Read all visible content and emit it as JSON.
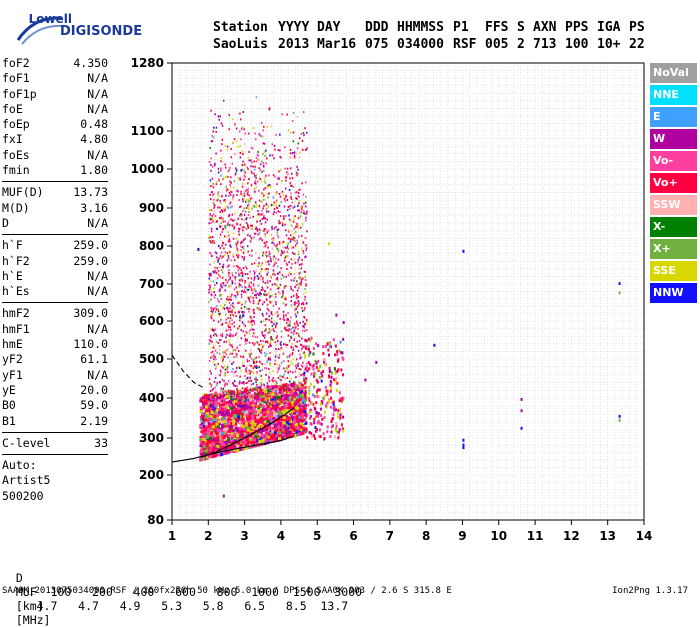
{
  "logo": {
    "top": "Lowell",
    "main": "DIGISONDE"
  },
  "header": {
    "labels": [
      "Station",
      "YYYY",
      "DAY",
      "DDD",
      "HHMMSS",
      "P1",
      "FFS",
      "S",
      "AXN",
      "PPS",
      "IGA",
      "PS"
    ],
    "values": [
      "SaoLuis",
      "2013",
      "Mar16",
      "075",
      "034000",
      "RSF",
      "005",
      "2",
      "713",
      "100",
      "10+",
      "22"
    ]
  },
  "params": [
    {
      "name": "foF2",
      "value": "4.350"
    },
    {
      "name": "foF1",
      "value": "N/A"
    },
    {
      "name": "foF1p",
      "value": "N/A"
    },
    {
      "name": "foE",
      "value": "N/A"
    },
    {
      "name": "foEp",
      "value": "0.48"
    },
    {
      "name": "fxI",
      "value": "4.80"
    },
    {
      "name": "foEs",
      "value": "N/A"
    },
    {
      "name": "fmin",
      "value": "1.80"
    },
    {
      "sep": true
    },
    {
      "name": "MUF(D)",
      "value": "13.73"
    },
    {
      "name": "M(D)",
      "value": "3.16"
    },
    {
      "name": "D",
      "value": "N/A"
    },
    {
      "sep": true
    },
    {
      "name": "h`F",
      "value": "259.0"
    },
    {
      "name": "h`F2",
      "value": "259.0"
    },
    {
      "name": "h`E",
      "value": "N/A"
    },
    {
      "name": "h`Es",
      "value": "N/A"
    },
    {
      "sep": true
    },
    {
      "name": "hmF2",
      "value": "309.0"
    },
    {
      "name": "hmF1",
      "value": "N/A"
    },
    {
      "name": "hmE",
      "value": "110.0"
    },
    {
      "name": "yF2",
      "value": "61.1"
    },
    {
      "name": "yF1",
      "value": "N/A"
    },
    {
      "name": "yE",
      "value": "20.0"
    },
    {
      "name": "B0",
      "value": "59.0"
    },
    {
      "name": "B1",
      "value": "2.19"
    },
    {
      "sep": true
    },
    {
      "name": "C-level",
      "value": "33"
    },
    {
      "sep": true
    },
    {
      "name": "Auto:",
      "value": ""
    },
    {
      "name": "Artist5",
      "value": ""
    },
    {
      "name": "500200",
      "value": ""
    }
  ],
  "muf_table": {
    "d_label": "D",
    "d_values": [
      "100",
      "200",
      "400",
      "600",
      "800",
      "1000",
      "1500",
      "3000"
    ],
    "d_unit": "[km]",
    "m_label": "MUF",
    "m_values": [
      "4.7",
      "4.7",
      "4.9",
      "5.3",
      "5.8",
      "6.5",
      "8.5",
      "13.7"
    ],
    "m_unit": "[MHz]"
  },
  "footer": "SAA0K_2013075034000.RSF / 260fx256h 50 kHz 5.0 km / DPS-4 SAA0K 903 / 2.6 S 315.8 E",
  "version": "Ion2Png 1.3.17",
  "legend": [
    {
      "label": "NoVal",
      "color": "#a0a0a0"
    },
    {
      "label": "NNE",
      "color": "#00e0ff"
    },
    {
      "label": "E",
      "color": "#3fa0ff"
    },
    {
      "label": "W",
      "color": "#b000a0"
    },
    {
      "label": "Vo-",
      "color": "#ff3fa0"
    },
    {
      "label": "Vo+",
      "color": "#ff0040"
    },
    {
      "label": "SSW",
      "color": "#ffb0b0"
    },
    {
      "label": "X-",
      "color": "#008000"
    },
    {
      "label": "X+",
      "color": "#70b040"
    },
    {
      "label": "SSE",
      "color": "#d8d800"
    },
    {
      "label": "NNW",
      "color": "#1010ff"
    }
  ],
  "chart_data": {
    "type": "scatter",
    "title": "",
    "xlabel": "",
    "ylabel": "",
    "x_ticks": [
      1,
      2,
      3,
      4,
      5,
      6,
      7,
      8,
      9,
      10,
      11,
      12,
      13,
      14
    ],
    "y_ticks": [
      80,
      200,
      300,
      400,
      500,
      600,
      700,
      800,
      900,
      1000,
      1100,
      1280
    ],
    "xlim": [
      1,
      14
    ],
    "ylim": [
      80,
      1280
    ],
    "grid": true,
    "legend_position": "right",
    "scatter_points": [
      {
        "x": 1.7,
        "y": 795,
        "series": "NNW"
      },
      {
        "x": 9.0,
        "y": 790,
        "series": "NNW"
      },
      {
        "x": 13.3,
        "y": 705,
        "series": "NNW"
      },
      {
        "x": 13.3,
        "y": 680,
        "series": "X+"
      },
      {
        "x": 6.6,
        "y": 495,
        "series": "W"
      },
      {
        "x": 6.3,
        "y": 450,
        "series": "W"
      },
      {
        "x": 8.2,
        "y": 540,
        "series": "NNW"
      },
      {
        "x": 10.6,
        "y": 400,
        "series": "W"
      },
      {
        "x": 10.6,
        "y": 372,
        "series": "W"
      },
      {
        "x": 10.6,
        "y": 328,
        "series": "NNW"
      },
      {
        "x": 9.0,
        "y": 298,
        "series": "NNW"
      },
      {
        "x": 9.0,
        "y": 285,
        "series": "NNW"
      },
      {
        "x": 9.0,
        "y": 278,
        "series": "NNW"
      },
      {
        "x": 13.3,
        "y": 358,
        "series": "NNW"
      },
      {
        "x": 13.3,
        "y": 348,
        "series": "X+"
      },
      {
        "x": 2.4,
        "y": 148,
        "series": "W"
      },
      {
        "x": 5.3,
        "y": 810,
        "series": "SSE"
      },
      {
        "x": 5.5,
        "y": 620,
        "series": "W"
      },
      {
        "x": 5.7,
        "y": 600,
        "series": "W"
      }
    ],
    "traces": [
      {
        "name": "F2 trace",
        "style": "solid",
        "x": [
          1.0,
          1.6,
          2.0,
          2.5,
          3.0,
          3.5,
          4.0,
          4.35
        ],
        "y": [
          235,
          245,
          255,
          266,
          275,
          284,
          293,
          305
        ]
      },
      {
        "name": "virtual height",
        "style": "solid",
        "x": [
          1.8,
          2.2,
          2.7,
          3.2,
          3.7,
          4.1,
          4.35
        ],
        "y": [
          248,
          262,
          285,
          310,
          335,
          358,
          375
        ]
      },
      {
        "name": "E layer",
        "style": "dashed",
        "x": [
          1.0,
          1.3,
          1.6,
          1.9
        ],
        "y": [
          510,
          470,
          440,
          425
        ]
      }
    ]
  }
}
